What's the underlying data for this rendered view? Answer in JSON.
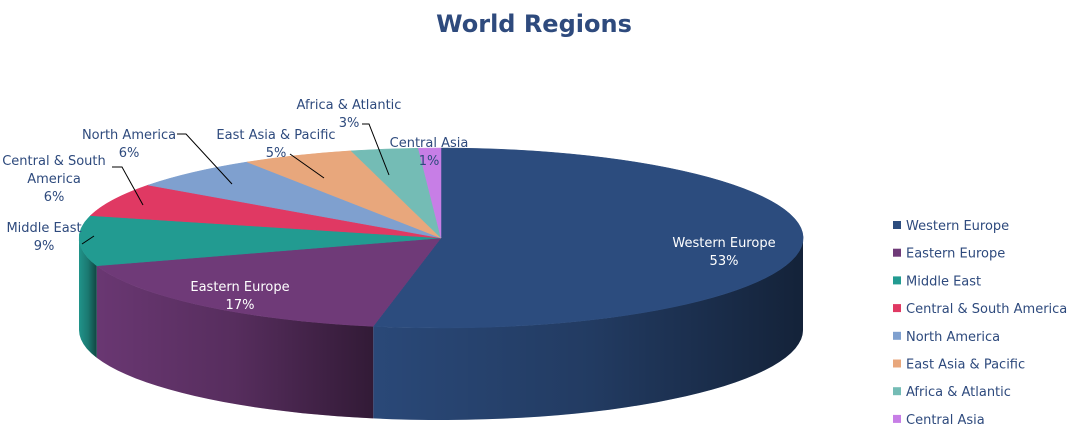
{
  "chart_data": {
    "type": "pie",
    "title": "World Regions",
    "legend_position": "right",
    "categories": [
      "Western Europe",
      "Eastern Europe",
      "Middle East",
      "Central & South America",
      "North America",
      "East Asia & Pacific",
      "Africa & Atlantic",
      "Central Asia"
    ],
    "values": [
      53,
      17,
      9,
      6,
      6,
      5,
      3,
      1
    ],
    "value_labels": [
      "53%",
      "17%",
      "9%",
      "6%",
      "6%",
      "5%",
      "3%",
      "1%"
    ],
    "slice_labels": [
      [
        "Western Europe",
        "53%"
      ],
      [
        "Eastern Europe",
        "17%"
      ],
      [
        "Middle East",
        "9%"
      ],
      [
        "Central & South",
        "America",
        "6%"
      ],
      [
        "North America",
        "6%"
      ],
      [
        "East Asia & Pacific",
        "5%"
      ],
      [
        "Africa & Atlantic",
        "3%"
      ],
      [
        "Central Asia",
        "1%"
      ]
    ],
    "colors": [
      "#2c4c7e",
      "#6f3a78",
      "#229b91",
      "#e03963",
      "#7fa0cf",
      "#e8a77c",
      "#74bcb5",
      "#c77ee6"
    ]
  }
}
